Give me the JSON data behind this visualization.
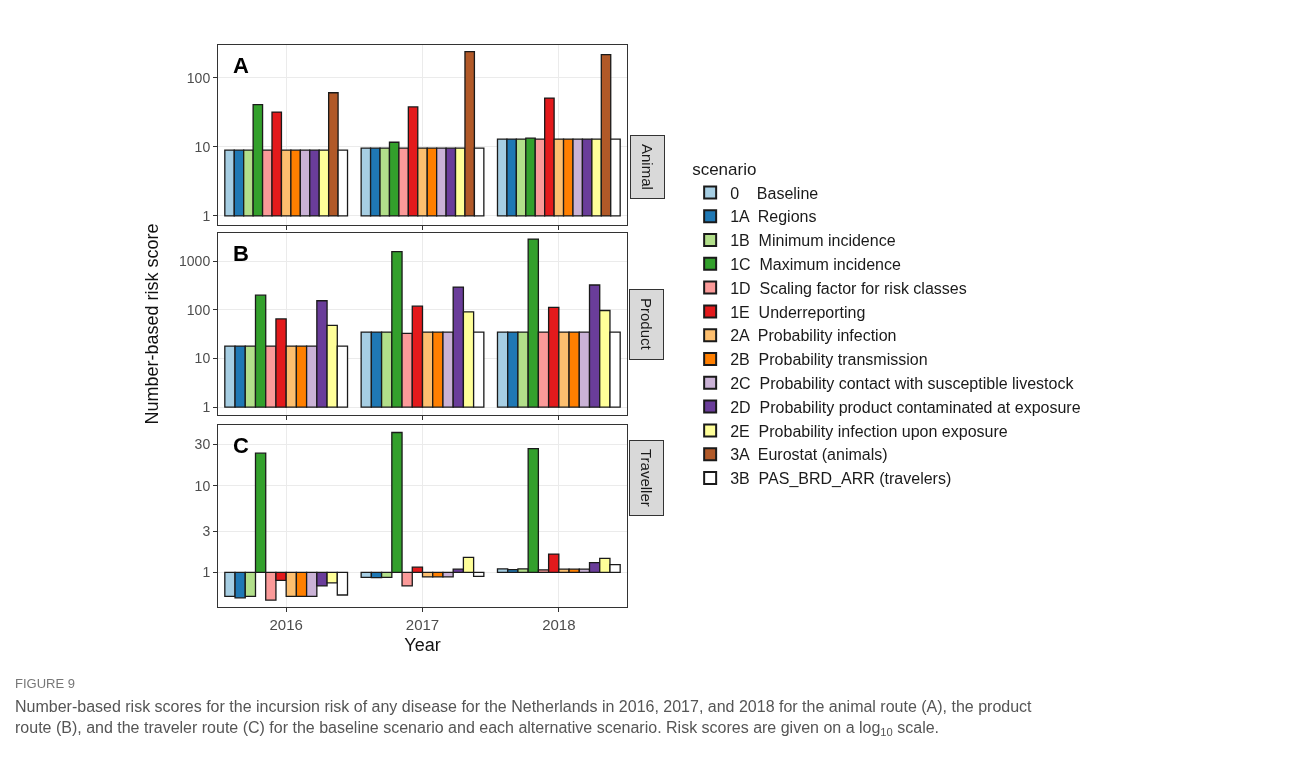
{
  "chart_data": [
    {
      "type": "bar",
      "categories": [
        "2016",
        "2017",
        "2018"
      ],
      "ylim": [
        0.74,
        300
      ],
      "yticks": [
        1,
        10,
        100
      ],
      "log": true,
      "grid": true,
      "tick_labels": "y",
      "legend": "right",
      "legend_title": "scenario",
      "annotations": [
        "A",
        "Animal"
      ],
      "series": [
        {
          "name": "0    Baseline",
          "color": "#a6cee3",
          "base": [
            1,
            1,
            1
          ],
          "values": [
            8,
            8.6,
            12
          ]
        },
        {
          "name": "1A  Regions",
          "color": "#1f78b4",
          "base": [
            1,
            1,
            1
          ],
          "values": [
            8,
            8.6,
            12
          ]
        },
        {
          "name": "1B  Minimum incidence",
          "color": "#b2df8a",
          "base": [
            1,
            1,
            1
          ],
          "values": [
            8,
            8.6,
            12
          ]
        },
        {
          "name": "1C  Maximum incidence",
          "color": "#33a02c",
          "base": [
            1,
            1,
            1
          ],
          "values": [
            40,
            10.7,
            12.4
          ]
        },
        {
          "name": "1D  Scaling factor for risk classes",
          "color": "#fb9a99",
          "base": [
            1,
            1,
            1
          ],
          "values": [
            8,
            8.6,
            12
          ]
        },
        {
          "name": "1E  Underreporting",
          "color": "#e31a1c",
          "base": [
            1,
            1,
            1
          ],
          "values": [
            31,
            37,
            50
          ]
        },
        {
          "name": "2A  Probability infection",
          "color": "#fdbf6f",
          "base": [
            1,
            1,
            1
          ],
          "values": [
            8,
            8.6,
            12
          ]
        },
        {
          "name": "2B  Probability transmission",
          "color": "#ff7f00",
          "base": [
            1,
            1,
            1
          ],
          "values": [
            8,
            8.6,
            12
          ]
        },
        {
          "name": "2C  Probability contact with susceptible livestock",
          "color": "#cab2d6",
          "base": [
            1,
            1,
            1
          ],
          "values": [
            8,
            8.6,
            12
          ]
        },
        {
          "name": "2D  Probability product contaminated at exposure",
          "color": "#6a3d9a",
          "base": [
            1,
            1,
            1
          ],
          "values": [
            8,
            8.6,
            12
          ]
        },
        {
          "name": "2E  Probability infection upon exposure",
          "color": "#ffff99",
          "base": [
            1,
            1,
            1
          ],
          "values": [
            8,
            8.6,
            12
          ]
        },
        {
          "name": "3A  Eurostat (animals)",
          "color": "#b15928",
          "base": [
            1,
            1,
            1
          ],
          "values": [
            60,
            239,
            217
          ]
        },
        {
          "name": "3B  PAS_BRD_ARR (travelers)",
          "color": "#ffffff",
          "base": [
            1,
            1,
            1
          ],
          "values": [
            8,
            8.6,
            12
          ]
        }
      ]
    },
    {
      "type": "bar",
      "categories": [
        "2016",
        "2017",
        "2018"
      ],
      "ylim": [
        0.69,
        3800
      ],
      "yticks": [
        1,
        10,
        100,
        1000
      ],
      "log": true,
      "grid": true,
      "tick_labels": "y",
      "ylabel": "Number-based risk score",
      "annotations": [
        "B",
        "Product"
      ],
      "series": [
        {
          "color": "#a6cee3",
          "base": [
            1,
            1,
            1
          ],
          "values": [
            17,
            34,
            34
          ]
        },
        {
          "color": "#1f78b4",
          "base": [
            1,
            1,
            1
          ],
          "values": [
            17,
            34,
            34
          ]
        },
        {
          "color": "#b2df8a",
          "base": [
            1,
            1,
            1
          ],
          "values": [
            17,
            34,
            34
          ]
        },
        {
          "color": "#33a02c",
          "base": [
            1,
            1,
            1
          ],
          "values": [
            199,
            1569,
            2849
          ]
        },
        {
          "color": "#fb9a99",
          "base": [
            1,
            1,
            1
          ],
          "values": [
            17,
            32,
            34
          ]
        },
        {
          "color": "#e31a1c",
          "base": [
            1,
            1,
            1
          ],
          "values": [
            64,
            118,
            111
          ]
        },
        {
          "color": "#fdbf6f",
          "base": [
            1,
            1,
            1
          ],
          "values": [
            17,
            34,
            34
          ]
        },
        {
          "color": "#ff7f00",
          "base": [
            1,
            1,
            1
          ],
          "values": [
            17,
            34,
            34
          ]
        },
        {
          "color": "#cab2d6",
          "base": [
            1,
            1,
            1
          ],
          "values": [
            17,
            34,
            34
          ]
        },
        {
          "color": "#6a3d9a",
          "base": [
            1,
            1,
            1
          ],
          "values": [
            153,
            293,
            323
          ]
        },
        {
          "color": "#ffff99",
          "base": [
            1,
            1,
            1
          ],
          "values": [
            47,
            90,
            96
          ]
        },
        {
          "color": "#ffffff",
          "base": [
            1,
            1,
            1
          ],
          "values": [
            17,
            34,
            34
          ]
        }
      ]
    },
    {
      "type": "bar",
      "categories": [
        "2016",
        "2017",
        "2018"
      ],
      "ylim": [
        0.4,
        50
      ],
      "yticks": [
        1,
        3,
        10,
        30
      ],
      "log": true,
      "grid": true,
      "xlabel": "Year",
      "annotations": [
        "C",
        "Traveller",
        "FIGURE 9",
        "Number-based risk scores for the incursion risk of any disease for the Netherlands in 2016, 2017, and 2018 for the animal route (A), the product",
        "route (B), and the traveler route (C) for the baseline scenario and each alternative scenario. Risk scores are given on a log$_{10}$ scale."
      ],
      "series": [
        {
          "color": "#a6cee3",
          "base": [
            1,
            1,
            1
          ],
          "values": [
            -0.47,
            -0.12,
            0.1
          ]
        },
        {
          "color": "#1f78b4",
          "base": [
            1,
            1,
            1
          ],
          "values": [
            -0.49,
            -0.13,
            0.08
          ]
        },
        {
          "color": "#b2df8a",
          "base": [
            1,
            1,
            1
          ],
          "values": [
            -0.47,
            -0.12,
            0.1
          ]
        },
        {
          "color": "#33a02c",
          "base": [
            1,
            1,
            1
          ],
          "values": [
            22.7,
            40,
            25.7
          ]
        },
        {
          "color": "#fb9a99",
          "base": [
            1,
            1,
            1
          ],
          "values": [
            -0.52,
            -0.3,
            0.07
          ]
        },
        {
          "color": "#e31a1c",
          "base": [
            1,
            1,
            1
          ],
          "values": [
            -0.19,
            0.15,
            0.63
          ]
        },
        {
          "color": "#fdbf6f",
          "base": [
            1,
            1,
            1
          ],
          "values": [
            -0.47,
            -0.11,
            0.09
          ]
        },
        {
          "color": "#ff7f00",
          "base": [
            1,
            1,
            1
          ],
          "values": [
            -0.47,
            -0.11,
            0.09
          ]
        },
        {
          "color": "#cab2d6",
          "base": [
            1,
            1,
            1
          ],
          "values": [
            -0.47,
            -0.11,
            0.09
          ]
        },
        {
          "color": "#6a3d9a",
          "base": [
            1,
            1,
            1
          ],
          "values": [
            -0.3,
            0.09,
            0.3
          ]
        },
        {
          "color": "#ffff99",
          "base": [
            1,
            1,
            1
          ],
          "values": [
            -0.24,
            0.49,
            0.45
          ]
        },
        {
          "color": "#ffffff",
          "base": [
            1,
            1,
            1
          ],
          "values": [
            -0.45,
            -0.1,
            0.23
          ]
        }
      ]
    }
  ]
}
